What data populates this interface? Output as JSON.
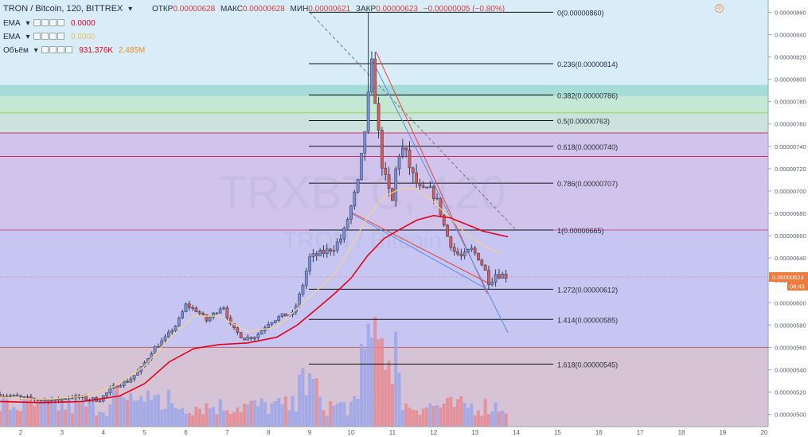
{
  "header": {
    "symbol": "TRON / Bitcoin, 120, BITTREX",
    "open_label": "ОТКР",
    "open": "0.00000628",
    "high_label": "МАКС",
    "high": "0.00000628",
    "low_label": "МИН",
    "low": "0.00000621",
    "close_label": "ЗАКР",
    "close": "0.00000623",
    "change": "−0.00000005 (−0.80%)"
  },
  "indicators": [
    {
      "name": "EMA",
      "value": "0.0000",
      "color": "#e4001b"
    },
    {
      "name": "EMA",
      "value": "0.0000",
      "color": "#f5d38a"
    },
    {
      "name": "Объём",
      "value1": "931.376K",
      "value2": "2.485M",
      "color": "#e4001b",
      "color2": "#f08a24"
    }
  ],
  "watermark": {
    "ticker": "TRXBTC, 120",
    "name": "TRON / Bitcoin"
  },
  "price_tag": {
    "value": "0.00000623",
    "timer": "08:43"
  },
  "chart_data": {
    "type": "candlestick",
    "title": "TRON / Bitcoin, 120, BITTREX",
    "x_ticks": [
      "2",
      "3",
      "4",
      "5",
      "6",
      "7",
      "8",
      "9",
      "10",
      "11",
      "12",
      "13",
      "14",
      "15",
      "16",
      "17",
      "18",
      "19",
      "20"
    ],
    "y_ticks": [
      "0.00000500",
      "0.00000520",
      "0.00000540",
      "0.00000560",
      "0.00000580",
      "0.00000600",
      "0.00000620",
      "0.00000640",
      "0.00000660",
      "0.00000680",
      "0.00000700",
      "0.00000720",
      "0.00000740",
      "0.00000760",
      "0.00000780",
      "0.00000800",
      "0.00000820",
      "0.00000840",
      "0.00000860"
    ],
    "ylim": [
      4.89e-06,
      8.71e-06
    ],
    "xlim": [
      1.5,
      20.1
    ],
    "colors": {
      "up": "#7b8ed6",
      "down": "#d85a5a",
      "ema_slow": "#e4001b",
      "ema_fast": "#f5d38a",
      "fib_line": "#111111",
      "bg": "#d9edf9"
    },
    "fib_levels": [
      {
        "ratio": "0",
        "label": "0(0.00000860)",
        "price": 8.6e-06
      },
      {
        "ratio": "0.236",
        "label": "0.236(0.00000814)",
        "price": 8.14e-06
      },
      {
        "ratio": "0.382",
        "label": "0.382(0.00000786)",
        "price": 7.86e-06
      },
      {
        "ratio": "0.5",
        "label": "0.5(0.00000763)",
        "price": 7.63e-06
      },
      {
        "ratio": "0.618",
        "label": "0.618(0.00000740)",
        "price": 7.4e-06
      },
      {
        "ratio": "0.786",
        "label": "0.786(0.00000707)",
        "price": 7.07e-06
      },
      {
        "ratio": "1",
        "label": "1(0.00000665)",
        "price": 6.65e-06
      },
      {
        "ratio": "1.272",
        "label": "1.272(0.00000612)",
        "price": 6.12e-06
      },
      {
        "ratio": "1.414",
        "label": "1.414(0.00000585)",
        "price": 5.85e-06
      },
      {
        "ratio": "1.618",
        "label": "1.618(0.00000545)",
        "price": 5.45e-06
      }
    ],
    "zones": [
      {
        "from": 5.6e-06,
        "to": 4.89e-06,
        "color": "#d6c4d6"
      },
      {
        "from": 6.65e-06,
        "to": 5.6e-06,
        "color": "#c7c6f2"
      },
      {
        "from": 7.52e-06,
        "to": 6.65e-06,
        "color": "#d1c4ec"
      },
      {
        "from": 7.7e-06,
        "to": 7.52e-06,
        "color": "#cbe3dc"
      },
      {
        "from": 7.85e-06,
        "to": 7.7e-06,
        "color": "#c4e8d4"
      },
      {
        "from": 7.95e-06,
        "to": 7.85e-06,
        "color": "#a6dcd8"
      }
    ],
    "hlines": [
      {
        "price": 7.7e-06,
        "color": "#9fd65a"
      },
      {
        "price": 7.52e-06,
        "color": "#c8307a"
      },
      {
        "price": 7.31e-06,
        "color": "#d9205a"
      },
      {
        "price": 6.65e-06,
        "color": "#c85090"
      },
      {
        "price": 5.6e-06,
        "color": "#c06070"
      }
    ],
    "trend_lines": [
      {
        "x1": 9.0,
        "y1": 8.6e-06,
        "x2": 14.0,
        "y2": 6.65e-06,
        "color": "#777777",
        "dash": true
      },
      {
        "x1": 10.6,
        "y1": 8.25e-06,
        "x2": 13.3,
        "y2": 6.08e-06,
        "color": "#e2453c"
      },
      {
        "x1": 10.0,
        "y1": 6.81e-06,
        "x2": 13.3,
        "y2": 6.18e-06,
        "color": "#e2453c"
      },
      {
        "x1": 10.5,
        "y1": 8.18e-06,
        "x2": 13.8,
        "y2": 5.73e-06,
        "color": "#5a8de0"
      },
      {
        "x1": 10.0,
        "y1": 6.8e-06,
        "x2": 13.3,
        "y2": 6.12e-06,
        "color": "#5a8de0"
      }
    ],
    "ema_fast": [
      [
        1.5,
        5.155e-06
      ],
      [
        2.5,
        5.132e-06
      ],
      [
        3.5,
        5.16e-06
      ],
      [
        4.3,
        5.255e-06
      ],
      [
        5.0,
        5.43e-06
      ],
      [
        5.6,
        5.68e-06
      ],
      [
        6.2,
        5.88e-06
      ],
      [
        6.8,
        5.88e-06
      ],
      [
        7.5,
        5.74e-06
      ],
      [
        8.2,
        5.78e-06
      ],
      [
        8.7,
        5.95e-06
      ],
      [
        9.2,
        6.12e-06
      ],
      [
        9.6,
        6.26e-06
      ],
      [
        10.0,
        6.5e-06
      ],
      [
        10.4,
        6.77e-06
      ],
      [
        10.8,
        6.95e-06
      ],
      [
        11.2,
        7.02e-06
      ],
      [
        11.6,
        7.02e-06
      ],
      [
        12.0,
        6.9e-06
      ],
      [
        12.4,
        6.76e-06
      ],
      [
        12.8,
        6.61e-06
      ],
      [
        13.2,
        6.51e-06
      ],
      [
        13.6,
        6.44e-06
      ]
    ],
    "ema_slow": [
      [
        1.5,
        5.115e-06
      ],
      [
        2.5,
        5.105e-06
      ],
      [
        3.5,
        5.115e-06
      ],
      [
        4.4,
        5.165e-06
      ],
      [
        5.0,
        5.275e-06
      ],
      [
        5.6,
        5.47e-06
      ],
      [
        6.2,
        5.59e-06
      ],
      [
        6.8,
        5.625e-06
      ],
      [
        7.5,
        5.64e-06
      ],
      [
        8.2,
        5.69e-06
      ],
      [
        8.7,
        5.8e-06
      ],
      [
        9.2,
        5.955e-06
      ],
      [
        9.6,
        6.08e-06
      ],
      [
        10.0,
        6.22e-06
      ],
      [
        10.4,
        6.42e-06
      ],
      [
        10.8,
        6.575e-06
      ],
      [
        11.2,
        6.66e-06
      ],
      [
        11.6,
        6.74e-06
      ],
      [
        12.0,
        6.78e-06
      ],
      [
        12.4,
        6.76e-06
      ],
      [
        12.8,
        6.7e-06
      ],
      [
        13.2,
        6.64e-06
      ],
      [
        13.8,
        6.59e-06
      ]
    ],
    "candles": [],
    "volume_ylim": [
      0,
      4.2
    ]
  }
}
